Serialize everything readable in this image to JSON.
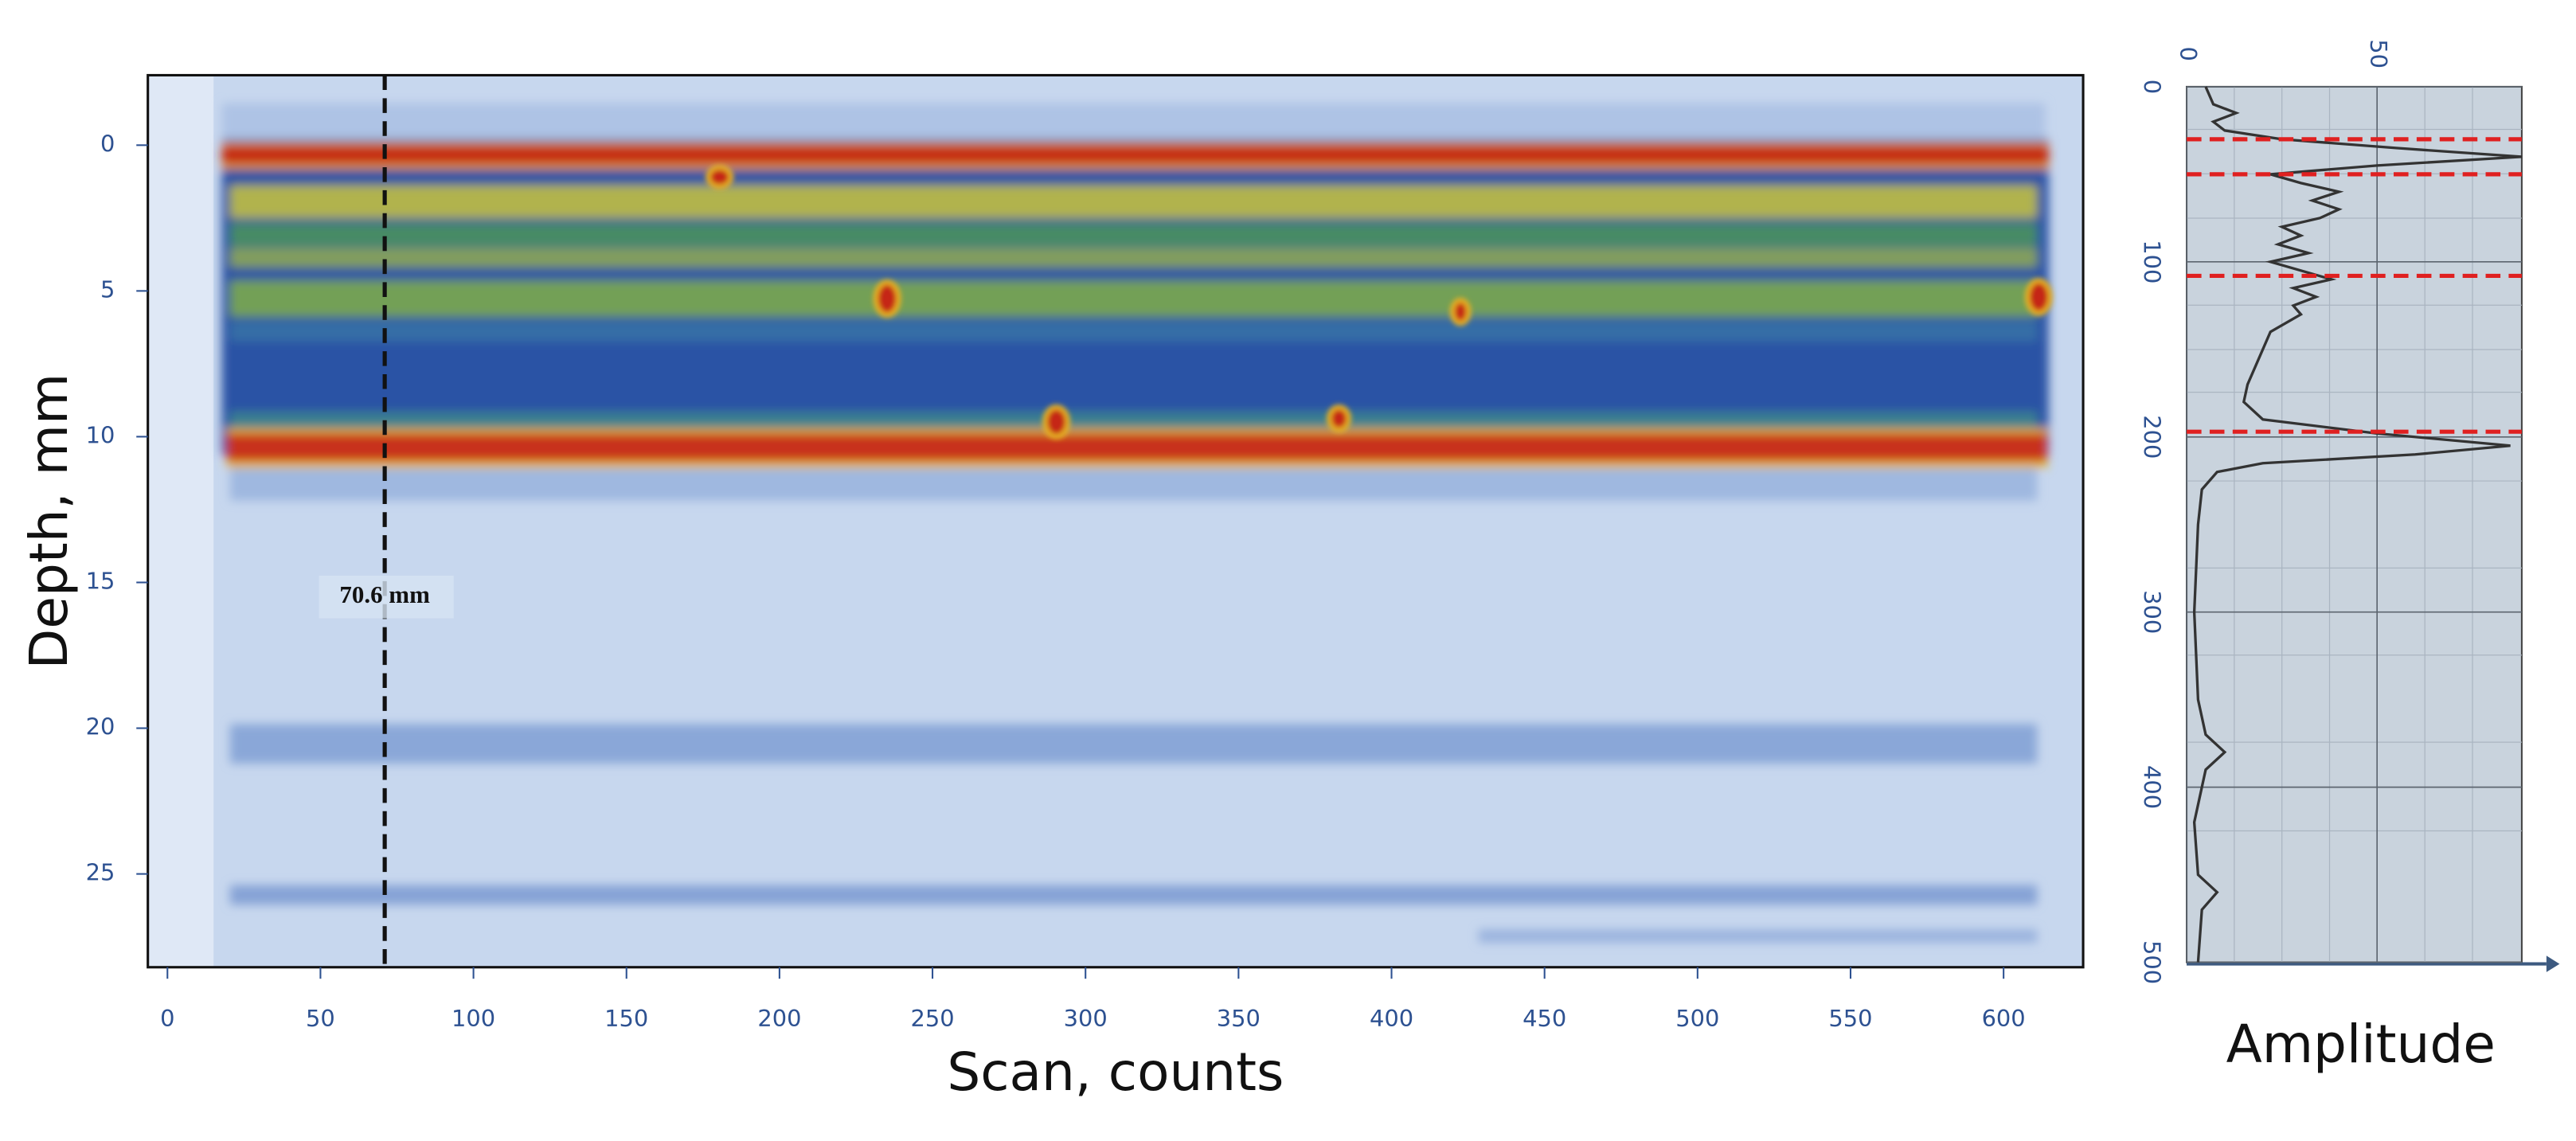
{
  "chart_data": [
    {
      "type": "bscan",
      "xlabel": "Scan, counts",
      "ylabel": "Depth, mm",
      "xlim": [
        -6.4,
        626
      ],
      "ylim": [
        -2.4,
        28.2
      ],
      "xticks": [
        0,
        50,
        100,
        150,
        200,
        250,
        300,
        350,
        400,
        450,
        500,
        550,
        600
      ],
      "yticks": [
        0,
        5,
        10,
        15,
        20,
        25
      ],
      "cursor": {
        "x": 71,
        "label": "70.6 mm",
        "label_depth": 15.5
      }
    },
    {
      "type": "line",
      "ylabel": "Amplitude",
      "color": "#333333",
      "x": [
        0,
        10,
        15,
        20,
        25,
        30,
        35,
        40,
        45,
        50,
        55,
        60,
        65,
        70,
        75,
        80,
        85,
        90,
        95,
        100,
        105,
        110,
        115,
        120,
        125,
        130,
        140,
        150,
        160,
        170,
        180,
        190,
        198,
        205,
        210,
        215,
        220,
        230,
        250,
        300,
        350,
        370,
        380,
        390,
        400,
        420,
        450,
        460,
        470,
        500
      ],
      "values": [
        5,
        7,
        13,
        7,
        10,
        25,
        55,
        88,
        50,
        22,
        30,
        40,
        33,
        40,
        35,
        25,
        30,
        24,
        32,
        22,
        30,
        38,
        28,
        34,
        28,
        30,
        22,
        20,
        18,
        16,
        15,
        20,
        50,
        85,
        60,
        20,
        8,
        4,
        3,
        2,
        3,
        5,
        10,
        5,
        4,
        2,
        3,
        8,
        4,
        3
      ],
      "xlim": [
        0,
        500
      ],
      "ylim": [
        0,
        88
      ],
      "xticks": [
        0,
        100,
        200,
        300,
        400,
        500
      ],
      "yticks": [
        0,
        50
      ],
      "markers": [
        30,
        50,
        108,
        197
      ],
      "marker_color": "#e02020"
    }
  ]
}
